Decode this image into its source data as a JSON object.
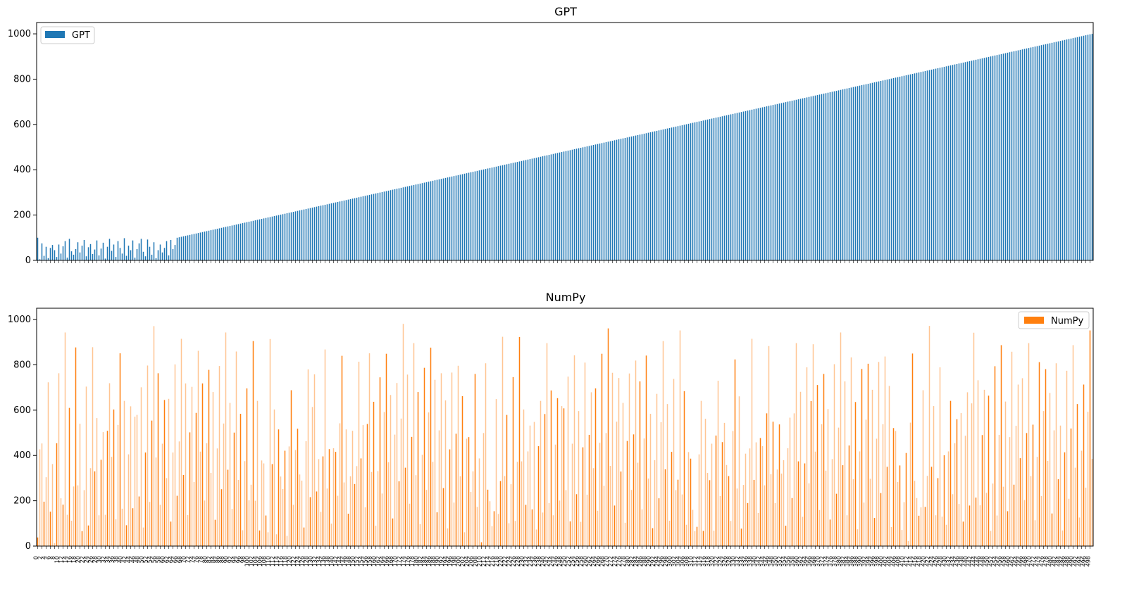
{
  "chart_data": [
    {
      "type": "bar",
      "title": "GPT",
      "xlabel": "",
      "ylabel": "",
      "ylim": [
        0,
        1050
      ],
      "yticks": [
        0,
        200,
        400,
        600,
        800,
        1000
      ],
      "legend": {
        "position": "top-left",
        "entries": [
          "GPT"
        ]
      },
      "grid": false,
      "color": "#1f77b4",
      "series": [
        {
          "name": "GPT",
          "description_note": "",
          "values_first_segment": [
            100,
            5,
            75,
            20,
            60,
            10,
            55,
            68,
            45,
            15,
            70,
            30,
            62,
            85,
            12,
            95,
            40,
            25,
            50,
            80,
            35,
            65,
            90,
            18,
            58,
            72,
            28,
            48,
            88,
            22,
            52,
            78,
            8,
            60,
            95,
            42,
            70,
            15,
            85,
            55,
            30,
            98,
            20,
            65,
            45,
            88,
            12,
            50,
            75,
            95,
            38,
            18,
            92,
            60,
            25,
            80,
            10,
            45,
            70,
            35,
            55,
            85,
            22,
            90,
            50,
            68
          ],
          "linear_start": 100,
          "linear_end": 1000
        }
      ]
    },
    {
      "type": "bar",
      "title": "NumPy",
      "xlabel": "",
      "ylabel": "",
      "ylim": [
        0,
        1050
      ],
      "yticks": [
        0,
        200,
        400,
        600,
        800,
        1000
      ],
      "legend": {
        "position": "top-right",
        "entries": [
          "NumPy"
        ]
      },
      "grid": false,
      "color": "#ff7f0e",
      "series": [
        {
          "name": "NumPy",
          "values_sample": [
            480,
            990,
            580,
            920,
            540,
            790,
            440,
            520,
            100,
            950,
            920,
            810,
            300,
            980,
            350,
            820,
            640,
            500,
            1000,
            870,
            820,
            740,
            560,
            890,
            410,
            600,
            950,
            930,
            800,
            990,
            780,
            600,
            510,
            820,
            740,
            980,
            800,
            640,
            1000,
            960,
            520,
            960,
            930,
            900,
            770,
            720,
            980,
            620,
            600,
            980,
            560,
            830,
            940,
            700,
            880,
            990,
            950,
            1000,
            940,
            830,
            720,
            920,
            960,
            1000,
            900,
            990,
            920,
            780,
            970,
            840,
            990,
            880,
            990,
            820,
            980,
            920,
            870,
            990,
            930,
            990,
            820,
            860,
            960,
            990,
            980,
            920,
            970,
            1000,
            900,
            990,
            880,
            860,
            990,
            970,
            990,
            980,
            900,
            880,
            870,
            890,
            950
          ]
        }
      ]
    }
  ],
  "xtick_labels_note": "Hundreds of dense, overlapping rotated tick labels below lower panel (unreadable)"
}
